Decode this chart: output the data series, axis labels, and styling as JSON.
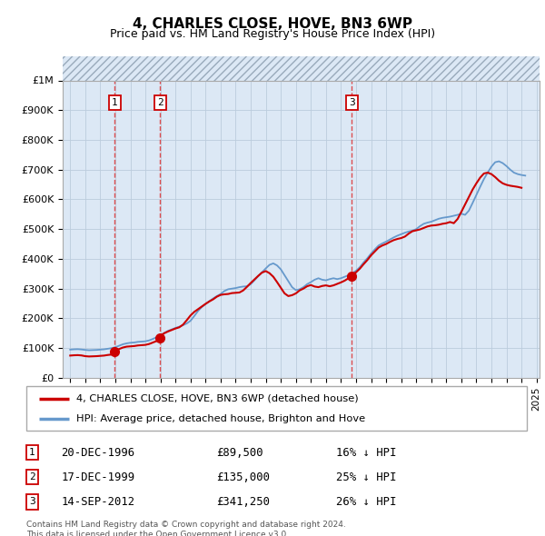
{
  "title": "4, CHARLES CLOSE, HOVE, BN3 6WP",
  "subtitle": "Price paid vs. HM Land Registry's House Price Index (HPI)",
  "ylabel_ticks": [
    "£0",
    "£100K",
    "£200K",
    "£300K",
    "£400K",
    "£500K",
    "£600K",
    "£700K",
    "£800K",
    "£900K",
    "£1M"
  ],
  "ytick_vals": [
    0,
    100000,
    200000,
    300000,
    400000,
    500000,
    600000,
    700000,
    800000,
    900000,
    1000000
  ],
  "ylim": [
    0,
    1000000
  ],
  "plot_bg": "#dce8f5",
  "red_line_color": "#cc0000",
  "blue_line_color": "#6699cc",
  "marker_color": "#cc0000",
  "dashed_line_color": "#dd3333",
  "transactions": [
    {
      "num": 1,
      "date": "20-DEC-1996",
      "x": 1996.97,
      "price": 89500,
      "label": "£89,500",
      "pct": "16% ↓ HPI"
    },
    {
      "num": 2,
      "date": "17-DEC-1999",
      "x": 1999.97,
      "price": 135000,
      "label": "£135,000",
      "pct": "25% ↓ HPI"
    },
    {
      "num": 3,
      "date": "14-SEP-2012",
      "x": 2012.71,
      "price": 341250,
      "label": "£341,250",
      "pct": "26% ↓ HPI"
    }
  ],
  "hpi_x": [
    1994.0,
    1994.25,
    1994.5,
    1994.75,
    1995.0,
    1995.25,
    1995.5,
    1995.75,
    1996.0,
    1996.25,
    1996.5,
    1996.75,
    1997.0,
    1997.25,
    1997.5,
    1997.75,
    1998.0,
    1998.25,
    1998.5,
    1998.75,
    1999.0,
    1999.25,
    1999.5,
    1999.75,
    2000.0,
    2000.25,
    2000.5,
    2000.75,
    2001.0,
    2001.25,
    2001.5,
    2001.75,
    2002.0,
    2002.25,
    2002.5,
    2002.75,
    2003.0,
    2003.25,
    2003.5,
    2003.75,
    2004.0,
    2004.25,
    2004.5,
    2004.75,
    2005.0,
    2005.25,
    2005.5,
    2005.75,
    2006.0,
    2006.25,
    2006.5,
    2006.75,
    2007.0,
    2007.25,
    2007.5,
    2007.75,
    2008.0,
    2008.25,
    2008.5,
    2008.75,
    2009.0,
    2009.25,
    2009.5,
    2009.75,
    2010.0,
    2010.25,
    2010.5,
    2010.75,
    2011.0,
    2011.25,
    2011.5,
    2011.75,
    2012.0,
    2012.25,
    2012.5,
    2012.75,
    2013.0,
    2013.25,
    2013.5,
    2013.75,
    2014.0,
    2014.25,
    2014.5,
    2014.75,
    2015.0,
    2015.25,
    2015.5,
    2015.75,
    2016.0,
    2016.25,
    2016.5,
    2016.75,
    2017.0,
    2017.25,
    2017.5,
    2017.75,
    2018.0,
    2018.25,
    2018.5,
    2018.75,
    2019.0,
    2019.25,
    2019.5,
    2019.75,
    2020.0,
    2020.25,
    2020.5,
    2020.75,
    2021.0,
    2021.25,
    2021.5,
    2021.75,
    2022.0,
    2022.25,
    2022.5,
    2022.75,
    2023.0,
    2023.25,
    2023.5,
    2023.75,
    2024.0,
    2024.25
  ],
  "hpi_y": [
    95000,
    96000,
    96500,
    95500,
    94000,
    93000,
    93500,
    94000,
    95000,
    96000,
    98000,
    100000,
    103000,
    108000,
    113000,
    116000,
    118000,
    119000,
    121000,
    122000,
    123000,
    126000,
    131000,
    137000,
    143000,
    151000,
    158000,
    163000,
    168000,
    172000,
    177000,
    183000,
    192000,
    208000,
    225000,
    238000,
    248000,
    258000,
    267000,
    275000,
    282000,
    292000,
    298000,
    300000,
    302000,
    305000,
    307000,
    308000,
    315000,
    328000,
    342000,
    355000,
    368000,
    380000,
    385000,
    378000,
    365000,
    345000,
    325000,
    305000,
    295000,
    298000,
    305000,
    315000,
    322000,
    330000,
    335000,
    330000,
    328000,
    332000,
    335000,
    332000,
    335000,
    340000,
    345000,
    352000,
    360000,
    372000,
    388000,
    402000,
    418000,
    432000,
    445000,
    452000,
    458000,
    465000,
    472000,
    478000,
    483000,
    488000,
    492000,
    495000,
    500000,
    510000,
    518000,
    522000,
    525000,
    530000,
    535000,
    538000,
    540000,
    542000,
    545000,
    548000,
    552000,
    548000,
    562000,
    588000,
    615000,
    642000,
    668000,
    690000,
    710000,
    725000,
    728000,
    722000,
    712000,
    700000,
    690000,
    685000,
    682000,
    680000,
    678000,
    675000
  ],
  "pp_x": [
    1994.0,
    1994.25,
    1994.5,
    1994.75,
    1995.0,
    1995.25,
    1995.5,
    1995.75,
    1996.0,
    1996.25,
    1996.5,
    1996.75,
    1996.97,
    1997.0,
    1997.25,
    1997.5,
    1997.75,
    1998.0,
    1998.25,
    1998.5,
    1998.75,
    1999.0,
    1999.25,
    1999.5,
    1999.75,
    1999.97,
    2000.0,
    2000.25,
    2000.5,
    2000.75,
    2001.0,
    2001.25,
    2001.5,
    2001.75,
    2002.0,
    2002.25,
    2002.5,
    2002.75,
    2003.0,
    2003.25,
    2003.5,
    2003.75,
    2004.0,
    2004.25,
    2004.5,
    2004.75,
    2005.0,
    2005.25,
    2005.5,
    2005.75,
    2006.0,
    2006.25,
    2006.5,
    2006.75,
    2007.0,
    2007.25,
    2007.5,
    2007.75,
    2008.0,
    2008.25,
    2008.5,
    2008.75,
    2009.0,
    2009.25,
    2009.5,
    2009.75,
    2010.0,
    2010.25,
    2010.5,
    2010.75,
    2011.0,
    2011.25,
    2011.5,
    2011.75,
    2012.0,
    2012.25,
    2012.5,
    2012.71,
    2012.75,
    2013.0,
    2013.25,
    2013.5,
    2013.75,
    2014.0,
    2014.25,
    2014.5,
    2014.75,
    2015.0,
    2015.25,
    2015.5,
    2015.75,
    2016.0,
    2016.25,
    2016.5,
    2016.75,
    2017.0,
    2017.25,
    2017.5,
    2017.75,
    2018.0,
    2018.25,
    2018.5,
    2018.75,
    2019.0,
    2019.25,
    2019.5,
    2019.75,
    2020.0,
    2020.25,
    2020.5,
    2020.75,
    2021.0,
    2021.25,
    2021.5,
    2021.75,
    2022.0,
    2022.25,
    2022.5,
    2022.75,
    2023.0,
    2023.25,
    2023.5,
    2023.75,
    2024.0,
    2024.25
  ],
  "pp_y": [
    75000,
    76000,
    76500,
    75500,
    73000,
    72000,
    72500,
    73000,
    74000,
    75000,
    77000,
    78500,
    89500,
    92000,
    97000,
    102000,
    105000,
    106000,
    107000,
    109000,
    110000,
    111000,
    114000,
    119000,
    124000,
    135000,
    142000,
    150000,
    156000,
    161000,
    166000,
    170000,
    179000,
    194000,
    210000,
    222000,
    231000,
    240000,
    249000,
    257000,
    264000,
    273000,
    279000,
    281000,
    282000,
    285000,
    286000,
    287000,
    294000,
    306000,
    319000,
    331000,
    343000,
    354000,
    359000,
    352000,
    340000,
    322000,
    303000,
    284000,
    275000,
    278000,
    284000,
    294000,
    300000,
    308000,
    312000,
    307000,
    305000,
    309000,
    311000,
    308000,
    311000,
    316000,
    321000,
    327000,
    335000,
    341250,
    347000,
    355000,
    367000,
    382000,
    396000,
    412000,
    425000,
    438000,
    445000,
    450000,
    457000,
    463000,
    467000,
    470000,
    475000,
    485000,
    493000,
    496000,
    499000,
    504000,
    509000,
    512000,
    513000,
    515000,
    518000,
    520000,
    524000,
    520000,
    534000,
    558000,
    583000,
    608000,
    633000,
    654000,
    673000,
    687000,
    690000,
    685000,
    675000,
    663000,
    654000,
    649000,
    646000,
    644000,
    642000,
    639000
  ],
  "legend_label_red": "4, CHARLES CLOSE, HOVE, BN3 6WP (detached house)",
  "legend_label_blue": "HPI: Average price, detached house, Brighton and Hove",
  "footer": "Contains HM Land Registry data © Crown copyright and database right 2024.\nThis data is licensed under the Open Government Licence v3.0.",
  "xlim": [
    1993.5,
    2025.2
  ],
  "xtick_years": [
    1994,
    1995,
    1996,
    1997,
    1998,
    1999,
    2000,
    2001,
    2002,
    2003,
    2004,
    2005,
    2006,
    2007,
    2008,
    2009,
    2010,
    2011,
    2012,
    2013,
    2014,
    2015,
    2016,
    2017,
    2018,
    2019,
    2020,
    2021,
    2022,
    2023,
    2024,
    2025
  ]
}
